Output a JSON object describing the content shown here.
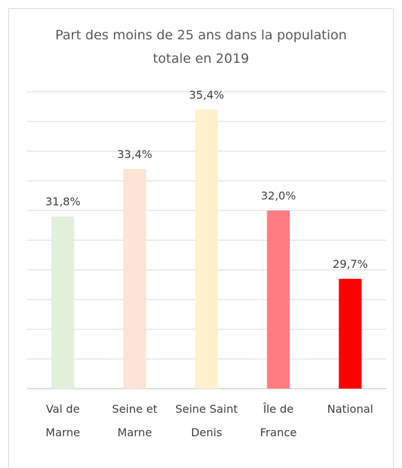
{
  "chart_data": {
    "type": "bar",
    "title": "Part des moins de 25 ans dans la population totale en 2019",
    "categories": [
      "Val de Marne",
      "Seine et Marne",
      "Seine Saint Denis",
      "Île de France",
      "National"
    ],
    "values": [
      31.8,
      33.4,
      35.4,
      32.0,
      29.7
    ],
    "value_labels": [
      "31,8%",
      "33,4%",
      "35,4%",
      "32,0%",
      "29,7%"
    ],
    "colors": [
      "#e2efda",
      "#fce4d6",
      "#fff2cc",
      "#ff7c80",
      "#ff0000"
    ],
    "ylim": [
      26,
      36
    ],
    "yticks": [
      26,
      27,
      28,
      29,
      30,
      31,
      32,
      33,
      34,
      35,
      36
    ],
    "grid": true
  }
}
